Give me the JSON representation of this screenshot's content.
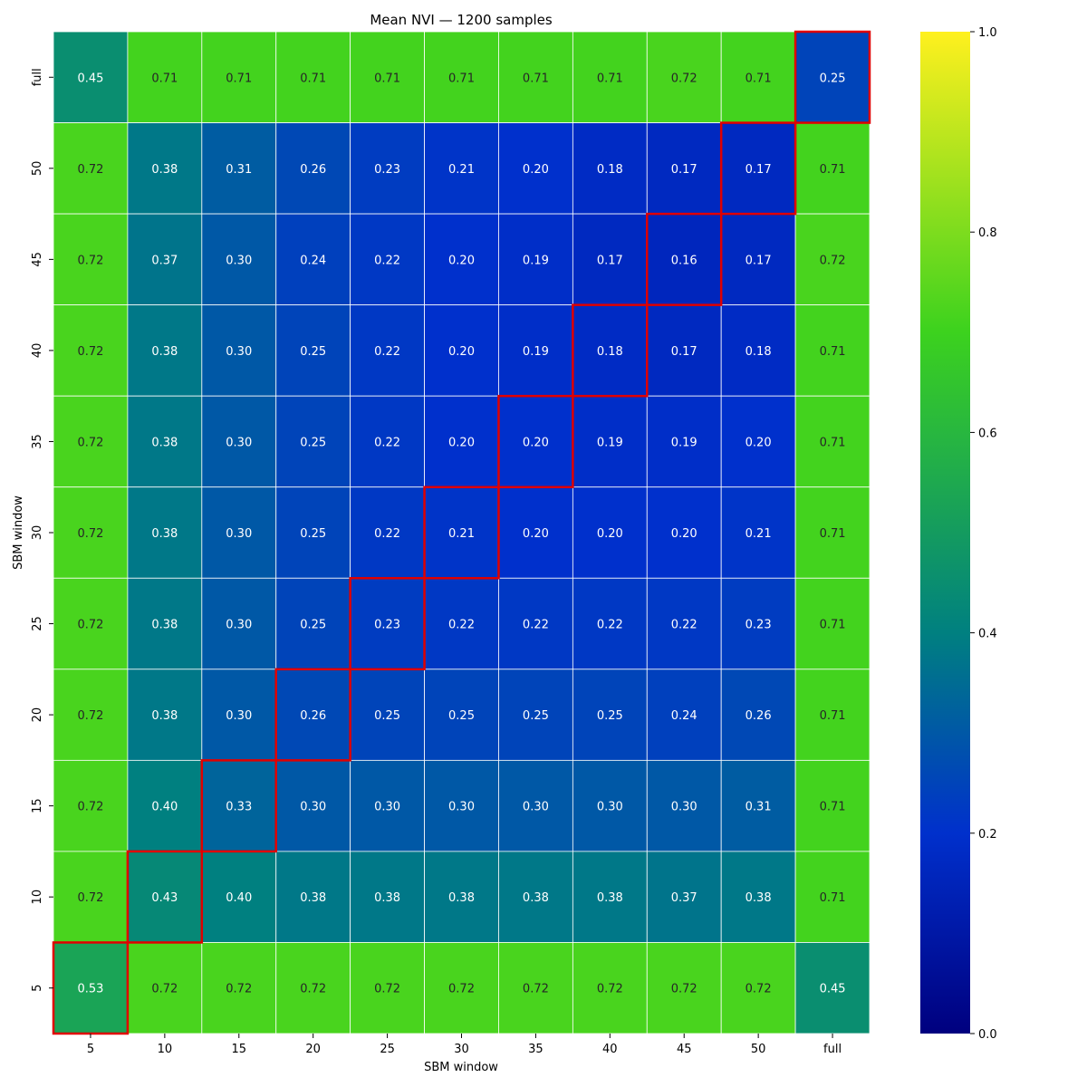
{
  "chart_data": {
    "type": "heatmap",
    "title": "Mean NVI — 1200 samples",
    "xlabel": "SBM window",
    "ylabel": "SBM window",
    "x_categories": [
      "5",
      "10",
      "15",
      "20",
      "25",
      "30",
      "35",
      "40",
      "45",
      "50",
      "full"
    ],
    "y_categories": [
      "full",
      "50",
      "45",
      "40",
      "35",
      "30",
      "25",
      "20",
      "15",
      "10",
      "5"
    ],
    "values": [
      [
        0.45,
        0.71,
        0.71,
        0.71,
        0.71,
        0.71,
        0.71,
        0.71,
        0.72,
        0.71,
        0.25
      ],
      [
        0.72,
        0.38,
        0.31,
        0.26,
        0.23,
        0.21,
        0.2,
        0.18,
        0.17,
        0.17,
        0.71
      ],
      [
        0.72,
        0.37,
        0.3,
        0.24,
        0.22,
        0.2,
        0.19,
        0.17,
        0.16,
        0.17,
        0.72
      ],
      [
        0.72,
        0.38,
        0.3,
        0.25,
        0.22,
        0.2,
        0.19,
        0.18,
        0.17,
        0.18,
        0.71
      ],
      [
        0.72,
        0.38,
        0.3,
        0.25,
        0.22,
        0.2,
        0.2,
        0.19,
        0.19,
        0.2,
        0.71
      ],
      [
        0.72,
        0.38,
        0.3,
        0.25,
        0.22,
        0.21,
        0.2,
        0.2,
        0.2,
        0.21,
        0.71
      ],
      [
        0.72,
        0.38,
        0.3,
        0.25,
        0.23,
        0.22,
        0.22,
        0.22,
        0.22,
        0.23,
        0.71
      ],
      [
        0.72,
        0.38,
        0.3,
        0.26,
        0.25,
        0.25,
        0.25,
        0.25,
        0.24,
        0.26,
        0.71
      ],
      [
        0.72,
        0.4,
        0.33,
        0.3,
        0.3,
        0.3,
        0.3,
        0.3,
        0.3,
        0.31,
        0.71
      ],
      [
        0.72,
        0.43,
        0.4,
        0.38,
        0.38,
        0.38,
        0.38,
        0.38,
        0.37,
        0.38,
        0.71
      ],
      [
        0.53,
        0.72,
        0.72,
        0.72,
        0.72,
        0.72,
        0.72,
        0.72,
        0.72,
        0.72,
        0.45
      ]
    ],
    "value_range": [
      0.0,
      1.0
    ],
    "colorbar_ticks": [
      "0.0",
      "0.2",
      "0.4",
      "0.6",
      "0.8",
      "1.0"
    ],
    "colormap": "winter_r-like: navy → blue → teal → green → yellow",
    "colormap_stops": [
      "#00007f",
      "#0030cc",
      "#008080",
      "#3cd21e",
      "#fff01e"
    ],
    "highlight_color": "#e00000",
    "highlight": "diagonal cells (matching x and y window) outlined in red",
    "cell_gridlines": "white",
    "grid": false
  }
}
